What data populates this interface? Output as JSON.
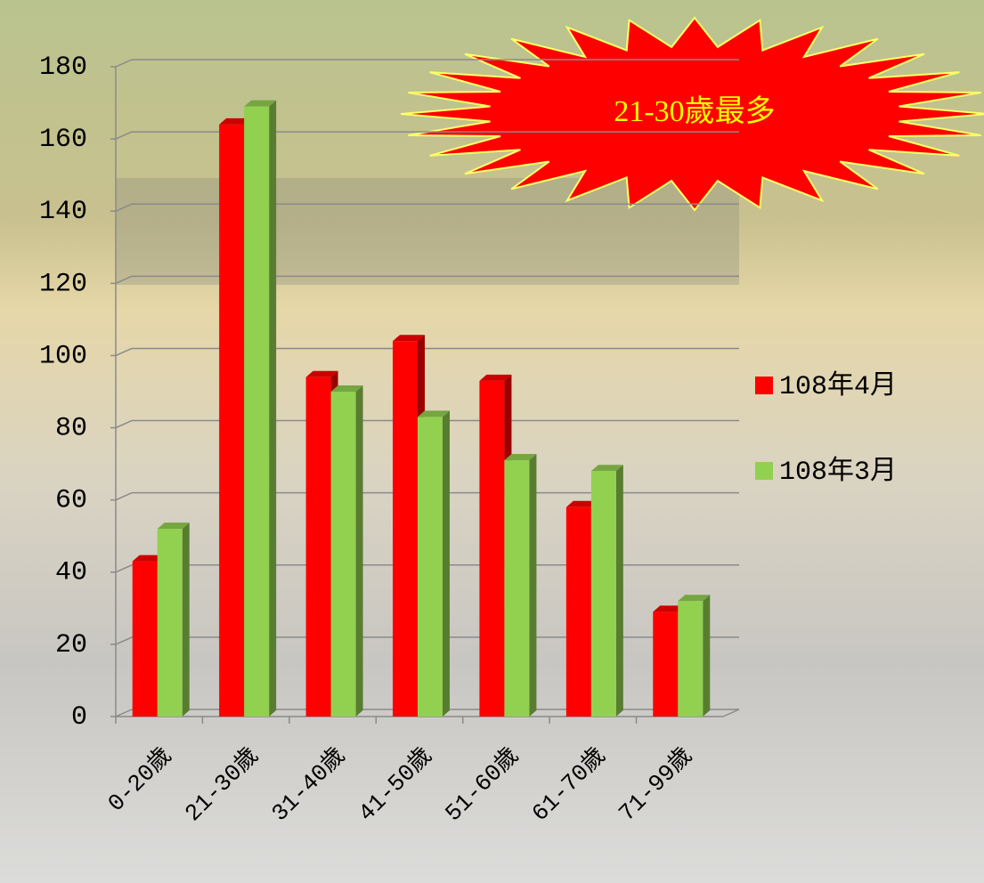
{
  "chart_data": {
    "type": "bar",
    "annotation": "21-30歲最多",
    "categories": [
      "0-20歲",
      "21-30歲",
      "31-40歲",
      "41-50歲",
      "51-60歲",
      "61-70歲",
      "71-99歲"
    ],
    "series": [
      {
        "name": "108年4月",
        "color": "#ff0000",
        "values": [
          43,
          164,
          94,
          104,
          93,
          58,
          29
        ]
      },
      {
        "name": "108年3月",
        "color": "#92d050",
        "values": [
          52,
          169,
          90,
          83,
          71,
          68,
          32
        ]
      }
    ],
    "ylim": [
      0,
      180
    ],
    "yticks": [
      0,
      20,
      40,
      60,
      80,
      100,
      120,
      140,
      160,
      180
    ],
    "grid": true,
    "legend": "right"
  }
}
